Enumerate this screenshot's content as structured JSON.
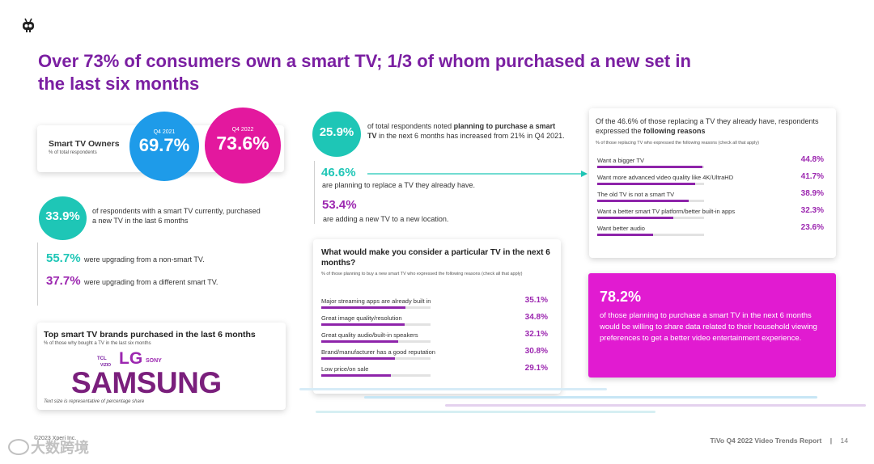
{
  "logo": {
    "icon": "tivo-robot-icon"
  },
  "title": "Over 73% of consumers own a smart TV; 1/3 of whom purchased a new set in the last six months",
  "owners": {
    "label": "Smart TV Owners",
    "sub": "% of total respondents",
    "q4_2021_label": "Q4 2021",
    "q4_2021_value": "69.7%",
    "q4_2022_label": "Q4 2022",
    "q4_2022_value": "73.6%",
    "colors": {
      "blue": "#1e9be9",
      "magenta": "#e3189e"
    }
  },
  "purchased": {
    "value": "33.9%",
    "text": "of respondents with a smart TV currently, purchased a new TV in the last 6 months",
    "upgrade1_value": "55.7%",
    "upgrade1_text": "were upgrading from a non-smart TV.",
    "upgrade2_value": "37.7%",
    "upgrade2_text": "were upgrading from a different smart TV."
  },
  "brands": {
    "title": "Top smart TV brands purchased in the last 6 months",
    "sub": "% of those why bought a TV in the last six months",
    "tcl": "TCL",
    "vizio": "VIZIO",
    "lg": "LG",
    "sony": "SONY",
    "samsung": "SAMSUNG",
    "note": "Text size is representative of percentage share"
  },
  "planning": {
    "value": "25.9%",
    "text_pre": "of total respondents noted ",
    "text_bold": "planning to purchase a smart TV",
    "text_post": " in the next 6 months has increased from 21% in Q4 2021.",
    "replace_value": "46.6%",
    "replace_text": "are planning to replace a TV they already have.",
    "add_value": "53.4%",
    "add_text": "are adding a new TV to a new location."
  },
  "consider": {
    "title": "What would make you consider a particular TV in the next 6 months?",
    "sub": "% of those planning to buy a new smart TV who expressed the following reasons (check all that apply)",
    "rows": [
      {
        "label": "Major streaming apps are already built in",
        "value": "35.1%",
        "pct": 35.1
      },
      {
        "label": "Great image quality/resolution",
        "value": "34.8%",
        "pct": 34.8
      },
      {
        "label": "Great quality audio/built-in speakers",
        "value": "32.1%",
        "pct": 32.1
      },
      {
        "label": "Brand/manufacturer has a good reputation",
        "value": "30.8%",
        "pct": 30.8
      },
      {
        "label": "Low price/on sale",
        "value": "29.1%",
        "pct": 29.1
      }
    ]
  },
  "reasons": {
    "title_pre": "Of the 46.6% of those replacing a TV they already have, respondents expressed the ",
    "title_bold": "following reasons",
    "sub": "% of those replacing TV who expressed the following reasons (check all that apply)",
    "rows": [
      {
        "label": "Want a bigger TV",
        "value": "44.8%",
        "pct": 44.8
      },
      {
        "label": "Want more advanced video quality like 4K/UltraHD",
        "value": "41.7%",
        "pct": 41.7
      },
      {
        "label": "The old TV is not a smart TV",
        "value": "38.9%",
        "pct": 38.9
      },
      {
        "label": "Want a better smart TV platform/better built-in apps",
        "value": "32.3%",
        "pct": 32.3
      },
      {
        "label": "Want better audio",
        "value": "23.6%",
        "pct": 23.6
      }
    ]
  },
  "share": {
    "value": "78.2%",
    "text": "of those planning to purchase a smart TV in the next 6 months would be willing to share data related to their household viewing preferences to get a better video entertainment experience."
  },
  "footer": {
    "copyright": "©2023 Xperi Inc.",
    "report": "TiVo Q4 2022 Video Trends Report",
    "sep": "|",
    "page": "14",
    "watermark": "大数跨境"
  }
}
